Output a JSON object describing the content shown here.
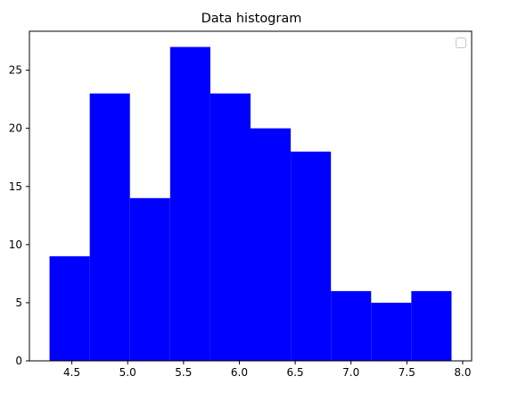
{
  "chart_data": {
    "type": "bar",
    "title": "Data histogram",
    "xlabel": "",
    "ylabel": "",
    "bin_edges": [
      4.3,
      4.66,
      5.02,
      5.38,
      5.74,
      6.1,
      6.46,
      6.82,
      7.18,
      7.54,
      7.9
    ],
    "values": [
      9,
      23,
      14,
      27,
      23,
      20,
      18,
      6,
      5,
      6
    ],
    "xlim": [
      4.12,
      8.08
    ],
    "ylim": [
      0,
      28.35
    ],
    "xticks": [
      4.5,
      5.0,
      5.5,
      6.0,
      6.5,
      7.0,
      7.5,
      8.0
    ],
    "xtick_labels": [
      "4.5",
      "5.0",
      "5.5",
      "6.0",
      "6.5",
      "7.0",
      "7.5",
      "8.0"
    ],
    "yticks": [
      0,
      5,
      10,
      15,
      20,
      25
    ],
    "ytick_labels": [
      "0",
      "5",
      "10",
      "15",
      "20",
      "25"
    ],
    "bar_color": "#0000ff",
    "grid": false,
    "legend": {
      "placement": "top-right",
      "entries": []
    }
  }
}
